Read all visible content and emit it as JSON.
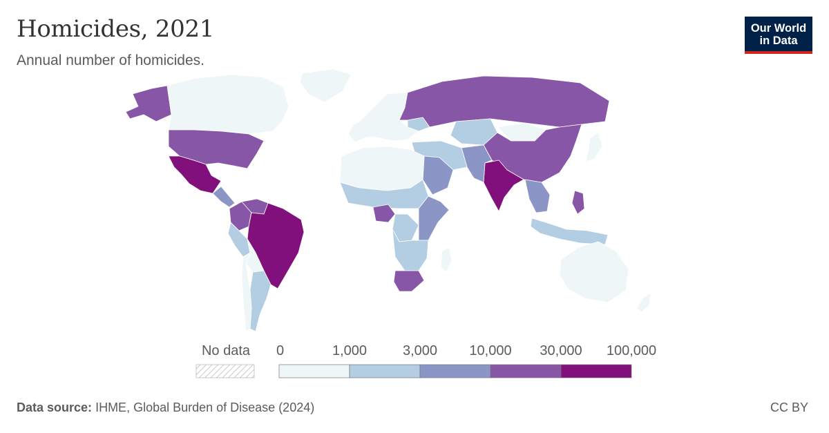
{
  "header": {
    "title": "Homicides, 2021",
    "subtitle": "Annual number of homicides."
  },
  "logo": {
    "line1": "Our World",
    "line2": "in Data"
  },
  "footer": {
    "source_label": "Data source:",
    "source_text": "IHME, Global Burden of Disease (2024)",
    "license": "CC BY"
  },
  "legend": {
    "no_data_label": "No data",
    "bins": [
      {
        "from": 0,
        "to": 1000,
        "color": "#eef6f8"
      },
      {
        "from": 1000,
        "to": 3000,
        "color": "#b3cde3"
      },
      {
        "from": 3000,
        "to": 10000,
        "color": "#8c96c6"
      },
      {
        "from": 10000,
        "to": 30000,
        "color": "#8856a7"
      },
      {
        "from": 30000,
        "to": 100000,
        "color": "#810f7c"
      }
    ],
    "tick_labels": [
      "0",
      "1,000",
      "3,000",
      "10,000",
      "30,000",
      "100,000"
    ]
  },
  "map_data": {
    "type": "choropleth",
    "year": 2021,
    "regions": [
      {
        "id": "alaska",
        "name": "USA (Alaska)",
        "bin": 3
      },
      {
        "id": "canada",
        "name": "Canada",
        "bin": 0
      },
      {
        "id": "greenland",
        "name": "Greenland",
        "bin": 0
      },
      {
        "id": "usa",
        "name": "United States",
        "bin": 3
      },
      {
        "id": "mexico",
        "name": "Mexico",
        "bin": 4
      },
      {
        "id": "central-america",
        "name": "Central America",
        "bin": 2
      },
      {
        "id": "colombia",
        "name": "Colombia",
        "bin": 3
      },
      {
        "id": "venezuela",
        "name": "Venezuela",
        "bin": 3
      },
      {
        "id": "brazil",
        "name": "Brazil",
        "bin": 4
      },
      {
        "id": "peru",
        "name": "Peru",
        "bin": 1
      },
      {
        "id": "bolivia",
        "name": "Bolivia",
        "bin": 0
      },
      {
        "id": "argentina",
        "name": "Argentina",
        "bin": 1
      },
      {
        "id": "chile",
        "name": "Chile",
        "bin": 0
      },
      {
        "id": "europe",
        "name": "Europe",
        "bin": 0
      },
      {
        "id": "ukraine",
        "name": "Ukraine",
        "bin": 1
      },
      {
        "id": "russia",
        "name": "Russia",
        "bin": 3
      },
      {
        "id": "kazakhstan",
        "name": "Kazakhstan",
        "bin": 1
      },
      {
        "id": "mongolia",
        "name": "Mongolia",
        "bin": 0
      },
      {
        "id": "china",
        "name": "China",
        "bin": 3
      },
      {
        "id": "india",
        "name": "India",
        "bin": 4
      },
      {
        "id": "afghanistan-pakistan",
        "name": "Afghanistan & Pakistan",
        "bin": 2
      },
      {
        "id": "middle-east",
        "name": "Middle East",
        "bin": 1
      },
      {
        "id": "saudi-arabia",
        "name": "Saudi Arabia",
        "bin": 2
      },
      {
        "id": "north-africa",
        "name": "North Africa",
        "bin": 0
      },
      {
        "id": "sahel",
        "name": "Sahel",
        "bin": 1
      },
      {
        "id": "nigeria",
        "name": "Nigeria",
        "bin": 3
      },
      {
        "id": "drc",
        "name": "DR Congo",
        "bin": 1
      },
      {
        "id": "east-africa",
        "name": "East Africa",
        "bin": 2
      },
      {
        "id": "southern-africa",
        "name": "Southern Africa",
        "bin": 1
      },
      {
        "id": "south-africa",
        "name": "South Africa",
        "bin": 3
      },
      {
        "id": "madagascar",
        "name": "Madagascar",
        "bin": 0
      },
      {
        "id": "southeast-asia",
        "name": "Southeast Asia",
        "bin": 2
      },
      {
        "id": "philippines",
        "name": "Philippines",
        "bin": 3
      },
      {
        "id": "indonesia",
        "name": "Indonesia",
        "bin": 1
      },
      {
        "id": "japan",
        "name": "Japan",
        "bin": 0
      },
      {
        "id": "australia",
        "name": "Australia",
        "bin": 0
      },
      {
        "id": "new-zealand",
        "name": "New Zealand",
        "bin": 0
      }
    ]
  }
}
